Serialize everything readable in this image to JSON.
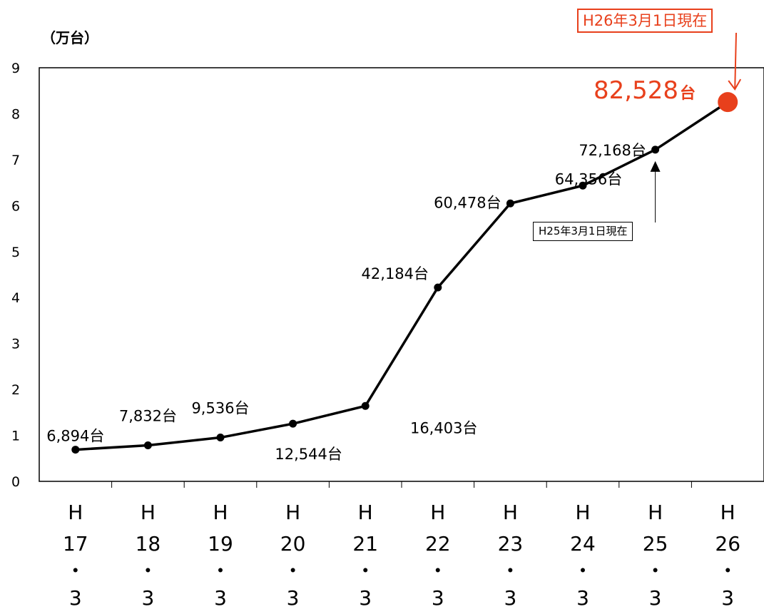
{
  "chart_data": {
    "type": "line",
    "unit_label": "（万台）",
    "ylim": [
      0,
      9
    ],
    "y_ticks": [
      "0",
      "1",
      "2",
      "3",
      "4",
      "5",
      "6",
      "7",
      "8",
      "9"
    ],
    "categories": [
      [
        "H",
        "17",
        "・",
        "3"
      ],
      [
        "H",
        "18",
        "・",
        "3"
      ],
      [
        "H",
        "19",
        "・",
        "3"
      ],
      [
        "H",
        "20",
        "・",
        "3"
      ],
      [
        "H",
        "21",
        "・",
        "3"
      ],
      [
        "H",
        "22",
        "・",
        "3"
      ],
      [
        "H",
        "23",
        "・",
        "3"
      ],
      [
        "H",
        "24",
        "・",
        "3"
      ],
      [
        "H",
        "25",
        "・",
        "3"
      ],
      [
        "H",
        "26",
        "・",
        "3"
      ]
    ],
    "values": [
      0.6894,
      0.7832,
      0.9536,
      1.2544,
      1.6403,
      4.2184,
      6.0478,
      6.4356,
      7.2168,
      8.2528
    ],
    "data_labels": [
      "6,894台",
      "7,832台",
      "9,536台",
      "12,544台",
      "16,403台",
      "42,184台",
      "60,478台",
      "64,356台",
      "72,168台",
      ""
    ],
    "highlight": {
      "value": "82,528",
      "unit": "台",
      "callout": "H26年3月1日現在",
      "color": "#e8401c"
    },
    "annotation": {
      "text": "H25年3月1日現在"
    },
    "grid": false,
    "line_color": "#000000"
  }
}
